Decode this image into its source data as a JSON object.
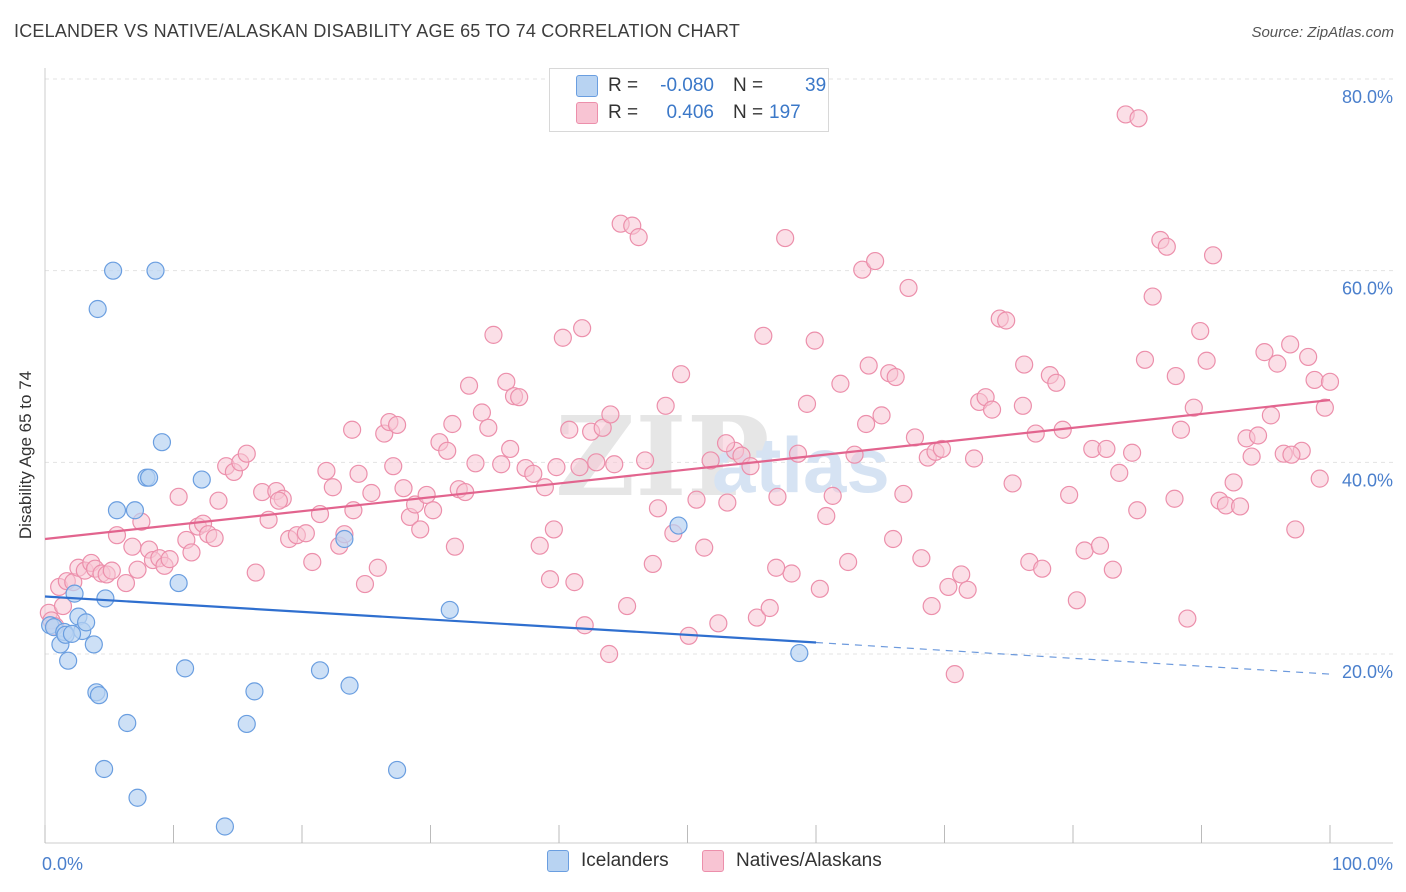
{
  "header": {
    "title": "ICELANDER VS NATIVE/ALASKAN DISABILITY AGE 65 TO 74 CORRELATION CHART",
    "source": "Source: ZipAtlas.com"
  },
  "legend_top": {
    "rows": [
      {
        "r_label": "R =",
        "r_value": "-0.080",
        "n_label": "N =",
        "n_value": "39"
      },
      {
        "r_label": "R =",
        "r_value": "0.406",
        "n_label": "N =",
        "n_value": "197"
      }
    ]
  },
  "legend_bottom": {
    "items": [
      {
        "label": "Icelanders"
      },
      {
        "label": "Natives/Alaskans"
      }
    ]
  },
  "watermark": {
    "zip": "ZIP",
    "atlas": "atlas"
  },
  "colors": {
    "blue_fill": "#b8d3f2",
    "blue_stroke": "#6a9ee0",
    "blue_line": "#2f6fcf",
    "pink_fill": "#f8c4d3",
    "pink_stroke": "#ec8fab",
    "pink_line": "#e2648e",
    "tick_text": "#4a7fcc",
    "grid": "#e3e3e3"
  },
  "chart_data": {
    "type": "scatter",
    "title": "ICELANDER VS NATIVE/ALASKAN DISABILITY AGE 65 TO 74 CORRELATION CHART",
    "xlabel": "",
    "ylabel": "Disability Age 65 to 74",
    "xlim": [
      0,
      100
    ],
    "ylim": [
      0,
      82
    ],
    "x_tick_labels": [
      "0.0%",
      "100.0%"
    ],
    "y_ticks": [
      20,
      40,
      60,
      80
    ],
    "y_tick_labels": [
      "20.0%",
      "40.0%",
      "60.0%",
      "80.0%"
    ],
    "grid": true,
    "legend_position": "top-center",
    "series": [
      {
        "name": "Icelanders",
        "r": -0.08,
        "n": 39,
        "trend": {
          "x0": 0,
          "y0": 26.0,
          "x1": 60,
          "y1": 21.2,
          "dash_x1": 100,
          "dash_y1": 17.9
        },
        "points": [
          [
            0.4,
            23.0
          ],
          [
            0.7,
            22.8
          ],
          [
            1.2,
            21.0
          ],
          [
            1.5,
            22.3
          ],
          [
            1.6,
            22.0
          ],
          [
            1.8,
            19.3
          ],
          [
            2.3,
            26.3
          ],
          [
            2.6,
            23.9
          ],
          [
            2.9,
            22.4
          ],
          [
            3.2,
            23.3
          ],
          [
            3.8,
            21.0
          ],
          [
            4.0,
            16.0
          ],
          [
            4.2,
            15.7
          ],
          [
            4.6,
            8.0
          ],
          [
            4.7,
            25.8
          ],
          [
            5.3,
            60.0
          ],
          [
            5.6,
            35.0
          ],
          [
            6.4,
            12.8
          ],
          [
            7.0,
            35.0
          ],
          [
            7.2,
            5.0
          ],
          [
            7.9,
            38.4
          ],
          [
            8.1,
            38.4
          ],
          [
            8.6,
            60.0
          ],
          [
            9.1,
            42.1
          ],
          [
            10.4,
            27.4
          ],
          [
            10.9,
            18.5
          ],
          [
            12.2,
            38.2
          ],
          [
            14.0,
            2.0
          ],
          [
            15.7,
            12.7
          ],
          [
            16.3,
            16.1
          ],
          [
            21.4,
            18.3
          ],
          [
            23.3,
            32.0
          ],
          [
            23.7,
            16.7
          ],
          [
            27.4,
            7.9
          ],
          [
            31.5,
            24.6
          ],
          [
            49.3,
            33.4
          ],
          [
            58.7,
            20.1
          ],
          [
            4.1,
            56.0
          ],
          [
            2.1,
            22.1
          ]
        ]
      },
      {
        "name": "Natives/Alaskans",
        "r": 0.406,
        "n": 197,
        "trend": {
          "x0": 0,
          "y0": 32.0,
          "x1": 100,
          "y1": 46.5
        },
        "points": [
          [
            0.3,
            24.3
          ],
          [
            0.5,
            23.5
          ],
          [
            0.8,
            22.9
          ],
          [
            1.1,
            27.0
          ],
          [
            1.4,
            25.0
          ],
          [
            1.7,
            27.6
          ],
          [
            2.2,
            27.5
          ],
          [
            2.6,
            29.0
          ],
          [
            3.1,
            28.7
          ],
          [
            3.6,
            29.5
          ],
          [
            3.9,
            28.9
          ],
          [
            4.4,
            28.4
          ],
          [
            4.8,
            28.3
          ],
          [
            5.2,
            28.7
          ],
          [
            5.6,
            32.4
          ],
          [
            6.3,
            27.4
          ],
          [
            6.8,
            31.2
          ],
          [
            7.2,
            28.8
          ],
          [
            7.5,
            33.8
          ],
          [
            8.1,
            30.9
          ],
          [
            8.4,
            29.8
          ],
          [
            8.9,
            30.0
          ],
          [
            9.3,
            29.2
          ],
          [
            9.7,
            29.9
          ],
          [
            10.4,
            36.4
          ],
          [
            11.0,
            31.9
          ],
          [
            11.4,
            30.6
          ],
          [
            11.9,
            33.3
          ],
          [
            12.3,
            33.6
          ],
          [
            12.7,
            32.5
          ],
          [
            13.2,
            32.1
          ],
          [
            14.1,
            39.6
          ],
          [
            14.7,
            39.0
          ],
          [
            15.2,
            40.0
          ],
          [
            15.7,
            40.9
          ],
          [
            16.4,
            28.5
          ],
          [
            16.9,
            36.9
          ],
          [
            17.4,
            34.0
          ],
          [
            18.0,
            37.0
          ],
          [
            18.5,
            36.2
          ],
          [
            19.0,
            32.0
          ],
          [
            19.6,
            32.4
          ],
          [
            20.3,
            32.6
          ],
          [
            20.8,
            29.6
          ],
          [
            21.4,
            34.6
          ],
          [
            21.9,
            39.1
          ],
          [
            22.4,
            37.4
          ],
          [
            22.9,
            31.3
          ],
          [
            23.3,
            32.5
          ],
          [
            23.9,
            43.4
          ],
          [
            24.4,
            38.8
          ],
          [
            24.9,
            27.3
          ],
          [
            25.4,
            36.8
          ],
          [
            25.9,
            29.0
          ],
          [
            26.4,
            43.0
          ],
          [
            26.8,
            44.2
          ],
          [
            27.4,
            43.9
          ],
          [
            27.9,
            37.3
          ],
          [
            28.4,
            34.3
          ],
          [
            28.8,
            35.6
          ],
          [
            29.2,
            33.0
          ],
          [
            29.7,
            36.6
          ],
          [
            30.2,
            35.0
          ],
          [
            30.7,
            42.1
          ],
          [
            31.3,
            41.2
          ],
          [
            31.7,
            44.0
          ],
          [
            32.2,
            37.2
          ],
          [
            32.7,
            36.9
          ],
          [
            33.0,
            48.0
          ],
          [
            33.5,
            39.9
          ],
          [
            34.0,
            45.2
          ],
          [
            34.5,
            43.6
          ],
          [
            34.9,
            53.3
          ],
          [
            35.5,
            39.8
          ],
          [
            35.9,
            48.4
          ],
          [
            36.5,
            46.9
          ],
          [
            36.9,
            46.8
          ],
          [
            37.4,
            39.4
          ],
          [
            38.0,
            38.8
          ],
          [
            38.5,
            31.3
          ],
          [
            38.9,
            37.4
          ],
          [
            39.3,
            27.8
          ],
          [
            39.8,
            39.5
          ],
          [
            40.3,
            53.0
          ],
          [
            40.8,
            43.4
          ],
          [
            41.2,
            27.5
          ],
          [
            41.6,
            39.5
          ],
          [
            42.0,
            23.0
          ],
          [
            42.5,
            43.2
          ],
          [
            42.9,
            40.0
          ],
          [
            43.4,
            43.6
          ],
          [
            43.9,
            20.0
          ],
          [
            44.3,
            39.8
          ],
          [
            44.8,
            64.9
          ],
          [
            45.3,
            25.0
          ],
          [
            45.7,
            64.7
          ],
          [
            46.2,
            63.5
          ],
          [
            46.7,
            40.2
          ],
          [
            47.3,
            29.4
          ],
          [
            47.7,
            35.2
          ],
          [
            48.3,
            45.9
          ],
          [
            48.9,
            32.6
          ],
          [
            49.5,
            49.2
          ],
          [
            50.1,
            21.9
          ],
          [
            50.7,
            36.1
          ],
          [
            51.3,
            31.1
          ],
          [
            51.8,
            40.2
          ],
          [
            52.4,
            23.2
          ],
          [
            53.1,
            35.8
          ],
          [
            53.7,
            41.2
          ],
          [
            54.2,
            40.7
          ],
          [
            54.9,
            39.6
          ],
          [
            55.4,
            23.8
          ],
          [
            55.9,
            53.2
          ],
          [
            56.4,
            24.8
          ],
          [
            57.0,
            36.4
          ],
          [
            57.6,
            63.4
          ],
          [
            58.1,
            28.4
          ],
          [
            58.6,
            40.9
          ],
          [
            59.3,
            46.1
          ],
          [
            59.9,
            52.7
          ],
          [
            60.3,
            26.8
          ],
          [
            60.8,
            34.4
          ],
          [
            61.3,
            36.5
          ],
          [
            61.9,
            48.2
          ],
          [
            62.5,
            29.6
          ],
          [
            63.0,
            40.8
          ],
          [
            63.6,
            60.1
          ],
          [
            64.1,
            50.1
          ],
          [
            64.6,
            61.0
          ],
          [
            65.1,
            44.9
          ],
          [
            65.7,
            49.3
          ],
          [
            66.2,
            48.9
          ],
          [
            66.8,
            36.7
          ],
          [
            67.2,
            58.2
          ],
          [
            67.7,
            42.6
          ],
          [
            68.2,
            30.0
          ],
          [
            68.7,
            40.5
          ],
          [
            69.3,
            41.1
          ],
          [
            69.8,
            41.4
          ],
          [
            70.3,
            27.0
          ],
          [
            70.8,
            17.9
          ],
          [
            71.3,
            28.3
          ],
          [
            71.8,
            26.7
          ],
          [
            72.3,
            40.4
          ],
          [
            72.7,
            46.3
          ],
          [
            73.2,
            46.8
          ],
          [
            73.7,
            45.5
          ],
          [
            74.3,
            55.0
          ],
          [
            74.8,
            54.8
          ],
          [
            75.3,
            37.8
          ],
          [
            76.1,
            45.9
          ],
          [
            76.6,
            29.6
          ],
          [
            77.1,
            43.0
          ],
          [
            77.6,
            28.9
          ],
          [
            78.2,
            49.1
          ],
          [
            78.7,
            48.3
          ],
          [
            79.2,
            43.4
          ],
          [
            79.7,
            36.6
          ],
          [
            80.3,
            25.6
          ],
          [
            80.9,
            30.8
          ],
          [
            81.5,
            41.4
          ],
          [
            82.1,
            31.3
          ],
          [
            82.6,
            41.4
          ],
          [
            83.1,
            28.8
          ],
          [
            83.6,
            38.9
          ],
          [
            84.1,
            76.3
          ],
          [
            84.6,
            41.0
          ],
          [
            85.1,
            75.9
          ],
          [
            85.6,
            50.7
          ],
          [
            86.2,
            57.3
          ],
          [
            86.8,
            63.2
          ],
          [
            87.3,
            62.5
          ],
          [
            87.9,
            36.2
          ],
          [
            88.4,
            43.4
          ],
          [
            88.9,
            23.7
          ],
          [
            89.4,
            45.7
          ],
          [
            89.9,
            53.7
          ],
          [
            90.4,
            50.6
          ],
          [
            90.9,
            61.6
          ],
          [
            91.4,
            36.0
          ],
          [
            91.9,
            35.5
          ],
          [
            92.5,
            37.9
          ],
          [
            93.0,
            35.4
          ],
          [
            93.5,
            42.5
          ],
          [
            93.9,
            40.6
          ],
          [
            94.4,
            42.8
          ],
          [
            94.9,
            51.5
          ],
          [
            95.4,
            44.9
          ],
          [
            95.9,
            50.3
          ],
          [
            96.4,
            40.9
          ],
          [
            96.9,
            52.3
          ],
          [
            97.3,
            33.0
          ],
          [
            97.8,
            41.2
          ],
          [
            98.3,
            51.0
          ],
          [
            98.8,
            48.6
          ],
          [
            99.2,
            38.3
          ],
          [
            99.6,
            45.7
          ],
          [
            100.0,
            48.4
          ],
          [
            41.8,
            54.0
          ],
          [
            36.2,
            41.4
          ],
          [
            31.9,
            31.2
          ],
          [
            27.1,
            39.6
          ],
          [
            44.0,
            45.0
          ],
          [
            66.0,
            32.0
          ],
          [
            53.0,
            42.0
          ],
          [
            76.2,
            50.2
          ],
          [
            88.0,
            49.0
          ],
          [
            97.0,
            40.8
          ],
          [
            18.2,
            36.0
          ],
          [
            13.5,
            36.0
          ],
          [
            24.0,
            35.0
          ],
          [
            39.6,
            33.0
          ],
          [
            56.9,
            29.0
          ],
          [
            63.9,
            44.0
          ],
          [
            85.0,
            35.0
          ],
          [
            69.0,
            25.0
          ]
        ]
      }
    ]
  }
}
